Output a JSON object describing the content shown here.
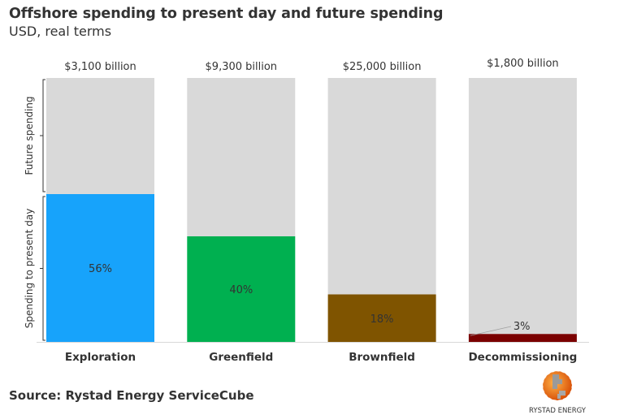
{
  "header": {
    "title": "Offshore spending to present day and future spending",
    "subtitle": "USD, real terms"
  },
  "footer": {
    "source": "Source: Rystad Energy ServiceCube",
    "logo_text": "RYSTAD ENERGY",
    "logo_icon": "rystad-globe-icon"
  },
  "chart_data": {
    "type": "bar",
    "stacked": true,
    "normalized": true,
    "title": "Offshore spending to present day and future spending",
    "subtitle": "USD, real terms",
    "categories": [
      "Exploration",
      "Greenfield",
      "Brownfield",
      "Decommissioning"
    ],
    "totals": [
      "$3,100 billion",
      "$9,300 billion",
      "$25,000 billion",
      "$1,800 billion"
    ],
    "series": [
      {
        "name": "Spending to present day",
        "values": [
          56,
          40,
          18,
          3
        ],
        "labels": [
          "56%",
          "40%",
          "18%",
          "3%"
        ]
      },
      {
        "name": "Future spending",
        "values": [
          44,
          60,
          82,
          97
        ]
      }
    ],
    "colors": {
      "present": [
        "#17a3fb",
        "#00b050",
        "#7f5400",
        "#7a0000"
      ],
      "future": "#d9d9d9",
      "axis": "#d9d9d9"
    },
    "bracket_labels": [
      "Future spending",
      "Spending to present day"
    ],
    "ylim": [
      0,
      100
    ],
    "xlabel": "",
    "ylabel": "",
    "grid": false,
    "legend": "none"
  }
}
